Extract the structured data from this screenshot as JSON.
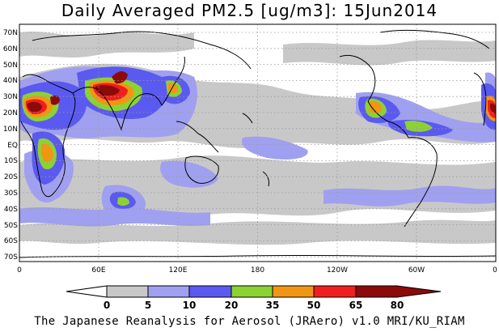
{
  "title": "Daily Averaged PM2.5 [ug/m3]: 15Jun2014",
  "lat_labels": [
    "70N",
    "60N",
    "50N",
    "40N",
    "30N",
    "20N",
    "10N",
    "EQ",
    "10S",
    "20S",
    "30S",
    "40S",
    "50S",
    "60S",
    "70S"
  ],
  "lon_labels": [
    "0",
    "60E",
    "120E",
    "180",
    "120W",
    "60W",
    "0"
  ],
  "colorbar": {
    "labels": [
      "0",
      "5",
      "10",
      "20",
      "35",
      "50",
      "65",
      "80"
    ],
    "colors": [
      "#ffffff",
      "#c8c8c8",
      "#a0a0f0",
      "#5a5af0",
      "#8cd232",
      "#f09614",
      "#f01e1e",
      "#8c0a0a"
    ]
  },
  "credit": "The Japanese Reanalysis for Aerosol (JRAero) v1.0 MRI/KU_RIAM"
}
